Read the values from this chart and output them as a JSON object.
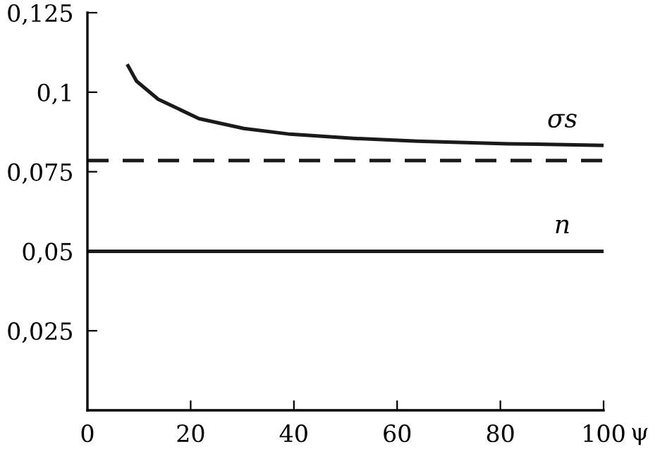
{
  "chart_data": {
    "type": "line",
    "xlabel": "ψ",
    "xlim": [
      0,
      100
    ],
    "ylim": [
      0,
      0.125
    ],
    "xticks": [
      {
        "value": 0,
        "label": "0"
      },
      20,
      40,
      60,
      80,
      100
    ],
    "yticks": [
      {
        "value": 0.025,
        "label": "0,025"
      },
      {
        "value": 0.05,
        "label": "0,05"
      },
      {
        "value": 0.075,
        "label": "0,075"
      },
      {
        "value": 0.1,
        "label": "0,1"
      },
      {
        "value": 0.125,
        "label": "0,125"
      }
    ],
    "grid": false,
    "legend": false,
    "marker": "none",
    "series": [
      {
        "name": "σs",
        "color": "#1a1a1a",
        "line_style": "solid",
        "x": [
          7.7,
          9.5,
          13.7,
          21.6,
          30.3,
          39.3,
          51.5,
          63.9,
          81.5,
          100
        ],
        "values": [
          0.1088,
          0.1035,
          0.0978,
          0.0917,
          0.0886,
          0.0868,
          0.0855,
          0.0846,
          0.0838,
          0.0833
        ]
      },
      {
        "color": "#1a1a1a",
        "line_style": "dashed",
        "x": [
          0,
          100
        ],
        "values": [
          0.0785,
          0.0785
        ]
      },
      {
        "name": "n",
        "color": "#1a1a1a",
        "line_style": "solid",
        "x": [
          0,
          100
        ],
        "values": [
          0.05,
          0.05
        ]
      }
    ]
  }
}
